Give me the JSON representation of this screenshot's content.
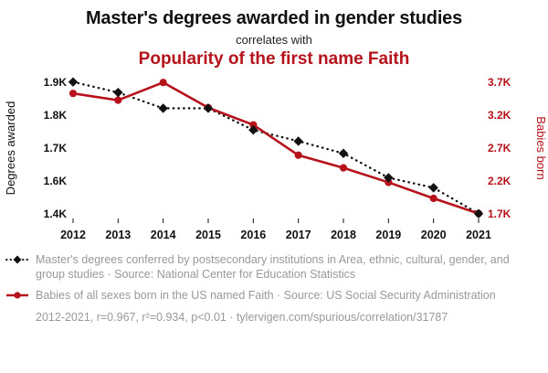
{
  "header": {
    "title": "Master's degrees awarded in gender studies",
    "subtitle": "correlates with",
    "title2": "Popularity of the first name Faith"
  },
  "colors": {
    "series_degrees": "#111111",
    "series_babies": "#b5121b",
    "legend_text": "#999999"
  },
  "chart_data": {
    "type": "line",
    "x": [
      2012,
      2013,
      2014,
      2015,
      2016,
      2017,
      2018,
      2019,
      2020,
      2021
    ],
    "series": [
      {
        "name": "Master's degrees in gender studies",
        "axis": "left",
        "style": "dotted-diamond",
        "values": [
          1901,
          1869,
          1821,
          1821,
          1755,
          1721,
          1684,
          1610,
          1559,
          1402
        ]
      },
      {
        "name": "Babies born named Faith",
        "axis": "right",
        "style": "solid-circle",
        "values": [
          3531,
          3428,
          3697,
          3314,
          3053,
          2592,
          2400,
          2180,
          1936,
          1706
        ]
      }
    ],
    "left_axis": {
      "label": "Degrees awarded",
      "ticks": [
        "1.9K",
        "1.8K",
        "1.7K",
        "1.6K",
        "1.4K"
      ],
      "tick_values": [
        1900,
        1800,
        1700,
        1600,
        1400
      ]
    },
    "right_axis": {
      "label": "Babies born",
      "ticks": [
        "3.7K",
        "3.2K",
        "2.7K",
        "2.2K",
        "1.7K"
      ],
      "tick_values": [
        3700,
        3200,
        2700,
        2200,
        1700
      ]
    },
    "grid": false,
    "legend_position": "bottom"
  },
  "legend": [
    {
      "text": "Master's degrees conferred by postsecondary institutions in Area, ethnic, cultural, gender, and group studies · Source: National Center for Education Statistics"
    },
    {
      "text": "Babies of all sexes born in the US named Faith · Source: US Social Security Administration"
    }
  ],
  "footer": {
    "text": "2012-2021, r=0.967, r²=0.934, p<0.01 · tylervigen.com/spurious/correlation/31787"
  }
}
